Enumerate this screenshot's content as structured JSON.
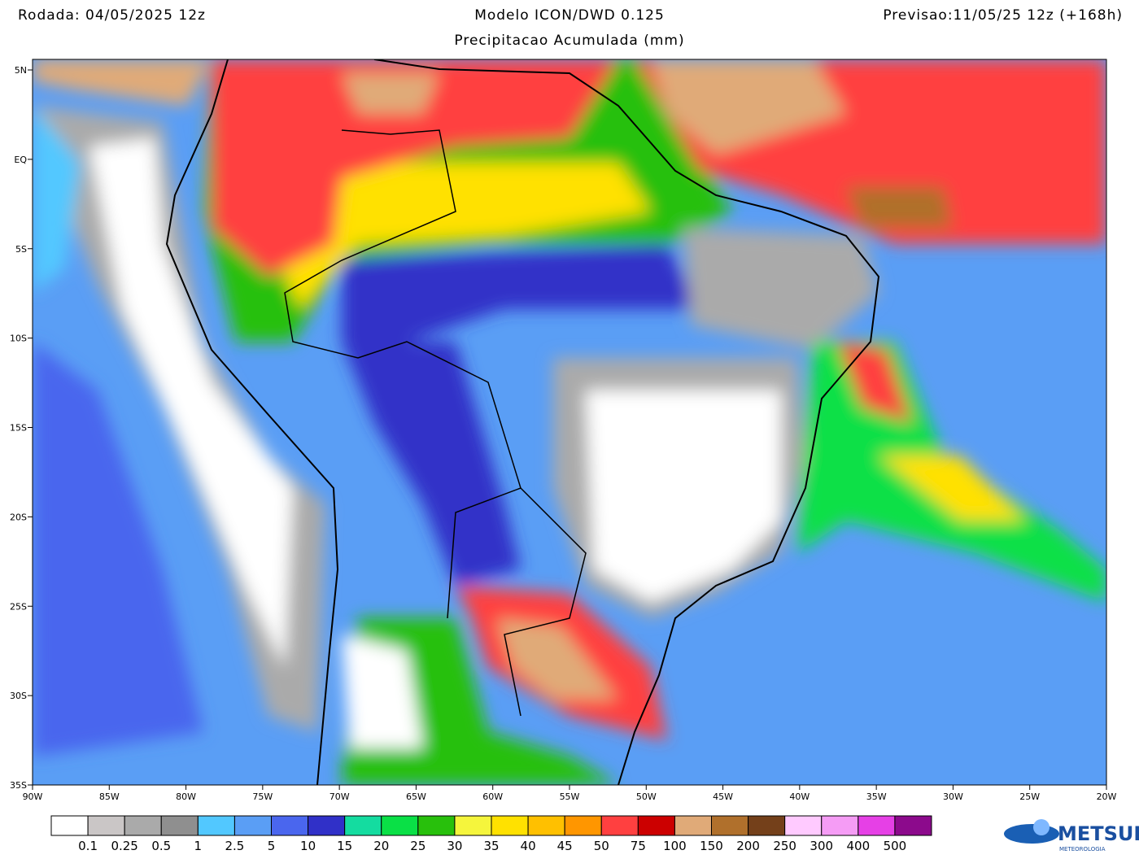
{
  "header": {
    "left": "Rodada: 04/05/2025 12z",
    "title": "Modelo ICON/DWD 0.125",
    "subtitle": "Precipitacao Acumulada (mm)",
    "right": "Previsao:11/05/25 12z (+168h)"
  },
  "map": {
    "lat_ticks": [
      "5N",
      "EQ",
      "5S",
      "10S",
      "15S",
      "20S",
      "25S",
      "30S",
      "35S"
    ],
    "lon_ticks": [
      "90W",
      "85W",
      "80W",
      "75W",
      "70W",
      "65W",
      "60W",
      "55W",
      "50W",
      "45W",
      "40W",
      "35W",
      "30W",
      "25W",
      "20W"
    ]
  },
  "legend": {
    "colors": [
      "#ffffff",
      "#cac6c6",
      "#aaaaaa",
      "#8f8f8f",
      "#52c8ff",
      "#5a9ef5",
      "#4a66ee",
      "#3030c8",
      "#14dca0",
      "#0ae046",
      "#28c00c",
      "#f5f53c",
      "#ffe100",
      "#ffc000",
      "#ff9600",
      "#ff4040",
      "#cc0000",
      "#e0aa78",
      "#b0702c",
      "#74401a",
      "#ffcaff",
      "#f59cf5",
      "#e640e6",
      "#8c0a8c"
    ],
    "labels": [
      "0.1",
      "0.25",
      "0.5",
      "1",
      "2.5",
      "5",
      "10",
      "15",
      "20",
      "25",
      "30",
      "35",
      "40",
      "45",
      "50",
      "75",
      "100",
      "150",
      "200",
      "250",
      "300",
      "400",
      "500"
    ]
  },
  "logo": {
    "name": "METSUL",
    "subtitle": "METEOROLOGIA"
  }
}
